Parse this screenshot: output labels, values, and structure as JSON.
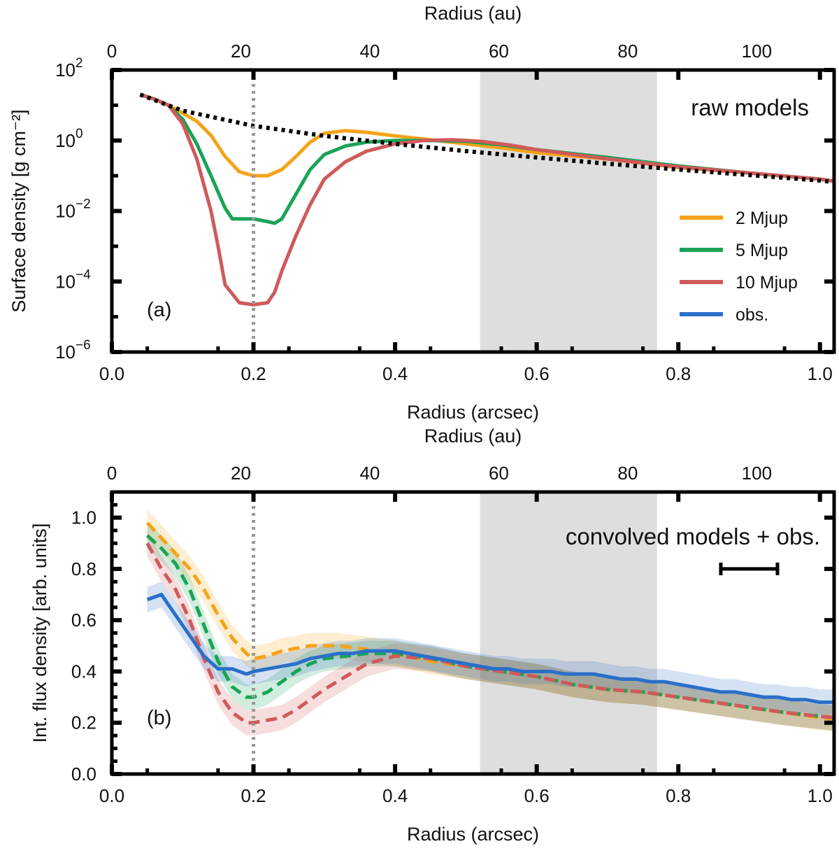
{
  "chart_data": [
    {
      "panel": "a",
      "type": "line",
      "yscale": "log",
      "annotation": "raw models",
      "panel_label": "(a)",
      "xlabel": "Radius (arcsec)",
      "x2label": "Radius (au)",
      "ylabel": "Surface density [g cm⁻²]",
      "xlim": [
        0.0,
        1.02
      ],
      "ylim": [
        1e-06,
        100
      ],
      "au_per_arcsec": 109.8,
      "xticks": [
        "0.0",
        "0.2",
        "0.4",
        "0.6",
        "0.8",
        "1.0"
      ],
      "x2ticks": [
        "0",
        "20",
        "40",
        "60",
        "80",
        "100"
      ],
      "yticks": [
        {
          "base": "10",
          "exp": "2"
        },
        {
          "base": "10",
          "exp": "0"
        },
        {
          "base": "10",
          "exp": "−2"
        },
        {
          "base": "10",
          "exp": "−4"
        },
        {
          "base": "10",
          "exp": "−6"
        }
      ],
      "planet_line_x": 0.2,
      "shaded_region": [
        0.52,
        0.77
      ],
      "legend": [
        "2 Mjup",
        "5 Mjup",
        "10 Mjup",
        "obs."
      ],
      "reference": {
        "name": "unperturbed",
        "style": "dotted",
        "x": [
          0.04,
          0.1,
          0.2,
          0.3,
          0.4,
          0.5,
          0.6,
          0.7,
          0.8,
          0.9,
          1.0,
          1.02
        ],
        "y": [
          20,
          7,
          2.6,
          1.35,
          0.8,
          0.5,
          0.33,
          0.22,
          0.15,
          0.105,
          0.073,
          0.066
        ]
      },
      "series": [
        {
          "name": "2 Mjup",
          "color": "#f5a31a",
          "x": [
            0.04,
            0.06,
            0.08,
            0.1,
            0.12,
            0.14,
            0.16,
            0.18,
            0.2,
            0.22,
            0.24,
            0.26,
            0.28,
            0.3,
            0.33,
            0.36,
            0.4,
            0.45,
            0.5,
            0.55,
            0.6,
            0.7,
            0.8,
            0.9,
            1.0,
            1.02
          ],
          "y": [
            20,
            15,
            10,
            6,
            3.5,
            1.4,
            0.35,
            0.13,
            0.1,
            0.1,
            0.15,
            0.35,
            0.9,
            1.6,
            1.9,
            1.7,
            1.35,
            1.05,
            0.8,
            0.62,
            0.45,
            0.3,
            0.17,
            0.12,
            0.08,
            0.07
          ]
        },
        {
          "name": "5 Mjup",
          "color": "#1aa356",
          "x": [
            0.04,
            0.06,
            0.08,
            0.1,
            0.12,
            0.14,
            0.16,
            0.17,
            0.2,
            0.22,
            0.23,
            0.24,
            0.26,
            0.28,
            0.3,
            0.33,
            0.36,
            0.4,
            0.45,
            0.5,
            0.55,
            0.6,
            0.7,
            0.8,
            0.9,
            1.0,
            1.02
          ],
          "y": [
            20,
            15,
            10,
            4,
            0.8,
            0.1,
            0.012,
            0.006,
            0.006,
            0.005,
            0.0045,
            0.006,
            0.03,
            0.15,
            0.4,
            0.7,
            0.9,
            1.0,
            1.0,
            0.95,
            0.75,
            0.55,
            0.33,
            0.19,
            0.12,
            0.08,
            0.07
          ]
        },
        {
          "name": "10 Mjup",
          "color": "#d05a5a",
          "x": [
            0.04,
            0.06,
            0.08,
            0.1,
            0.12,
            0.14,
            0.15,
            0.16,
            0.18,
            0.2,
            0.22,
            0.23,
            0.24,
            0.26,
            0.28,
            0.3,
            0.33,
            0.36,
            0.4,
            0.44,
            0.48,
            0.52,
            0.56,
            0.6,
            0.7,
            0.8,
            0.9,
            1.0,
            1.02
          ],
          "y": [
            20,
            15,
            10,
            3,
            0.3,
            0.01,
            0.001,
            8e-05,
            2.5e-05,
            2.2e-05,
            2.5e-05,
            5e-05,
            0.0002,
            0.002,
            0.015,
            0.08,
            0.25,
            0.5,
            0.8,
            1.0,
            1.05,
            0.95,
            0.75,
            0.55,
            0.3,
            0.18,
            0.12,
            0.08,
            0.07
          ]
        }
      ]
    },
    {
      "panel": "b",
      "type": "line",
      "yscale": "linear",
      "annotation": "convolved models + obs.",
      "panel_label": "(b)",
      "xlabel": "Radius (arcsec)",
      "x2label": "Radius (au)",
      "ylabel": "Int. flux density [arb. units]",
      "xlim": [
        0.0,
        1.02
      ],
      "ylim": [
        0.0,
        1.1
      ],
      "au_per_arcsec": 109.8,
      "xticks": [
        "0.0",
        "0.2",
        "0.4",
        "0.6",
        "0.8",
        "1.0"
      ],
      "x2ticks": [
        "0",
        "20",
        "40",
        "60",
        "80",
        "100"
      ],
      "yticks": [
        "0.0",
        "0.2",
        "0.4",
        "0.6",
        "0.8",
        "1.0"
      ],
      "planet_line_x": 0.2,
      "shaded_region": [
        0.52,
        0.77
      ],
      "beam_bar": [
        0.86,
        0.94,
        0.8
      ],
      "band_halfwidth": 0.05,
      "series": [
        {
          "name": "2 Mjup",
          "color": "#f5a31a",
          "style": "dashed",
          "x": [
            0.05,
            0.07,
            0.09,
            0.11,
            0.13,
            0.15,
            0.17,
            0.19,
            0.2,
            0.22,
            0.24,
            0.26,
            0.28,
            0.3,
            0.32,
            0.35,
            0.4,
            0.45,
            0.5,
            0.55,
            0.6,
            0.65,
            0.7,
            0.75,
            0.8,
            0.85,
            0.9,
            0.95,
            1.0,
            1.02
          ],
          "y": [
            0.98,
            0.92,
            0.86,
            0.8,
            0.72,
            0.62,
            0.53,
            0.47,
            0.45,
            0.46,
            0.48,
            0.49,
            0.5,
            0.5,
            0.5,
            0.49,
            0.47,
            0.44,
            0.42,
            0.4,
            0.38,
            0.35,
            0.33,
            0.32,
            0.3,
            0.28,
            0.26,
            0.24,
            0.22,
            0.215
          ]
        },
        {
          "name": "5 Mjup",
          "color": "#1aa356",
          "style": "dashed",
          "x": [
            0.05,
            0.07,
            0.09,
            0.11,
            0.13,
            0.15,
            0.17,
            0.19,
            0.2,
            0.22,
            0.24,
            0.26,
            0.28,
            0.3,
            0.33,
            0.36,
            0.4,
            0.45,
            0.5,
            0.55,
            0.6,
            0.65,
            0.7,
            0.75,
            0.8,
            0.85,
            0.9,
            0.95,
            1.0,
            1.02
          ],
          "y": [
            0.93,
            0.88,
            0.82,
            0.72,
            0.58,
            0.44,
            0.34,
            0.3,
            0.3,
            0.32,
            0.36,
            0.4,
            0.43,
            0.45,
            0.46,
            0.47,
            0.47,
            0.45,
            0.42,
            0.4,
            0.38,
            0.35,
            0.33,
            0.32,
            0.3,
            0.28,
            0.26,
            0.24,
            0.225,
            0.22
          ]
        },
        {
          "name": "10 Mjup",
          "color": "#d05a5a",
          "style": "dashed",
          "x": [
            0.05,
            0.07,
            0.09,
            0.11,
            0.13,
            0.15,
            0.17,
            0.19,
            0.2,
            0.22,
            0.24,
            0.26,
            0.28,
            0.3,
            0.33,
            0.36,
            0.4,
            0.45,
            0.5,
            0.55,
            0.6,
            0.65,
            0.7,
            0.75,
            0.8,
            0.85,
            0.9,
            0.95,
            1.0,
            1.02
          ],
          "y": [
            0.9,
            0.8,
            0.72,
            0.6,
            0.45,
            0.32,
            0.24,
            0.2,
            0.2,
            0.21,
            0.22,
            0.25,
            0.29,
            0.33,
            0.38,
            0.43,
            0.46,
            0.45,
            0.42,
            0.4,
            0.38,
            0.35,
            0.33,
            0.32,
            0.3,
            0.28,
            0.26,
            0.24,
            0.225,
            0.22
          ]
        },
        {
          "name": "obs.",
          "color": "#2a6fc9",
          "style": "solid",
          "x": [
            0.05,
            0.07,
            0.09,
            0.11,
            0.13,
            0.15,
            0.17,
            0.19,
            0.2,
            0.22,
            0.24,
            0.26,
            0.28,
            0.3,
            0.32,
            0.34,
            0.36,
            0.38,
            0.4,
            0.42,
            0.44,
            0.46,
            0.48,
            0.5,
            0.52,
            0.54,
            0.56,
            0.58,
            0.6,
            0.62,
            0.64,
            0.66,
            0.68,
            0.7,
            0.72,
            0.74,
            0.76,
            0.78,
            0.8,
            0.82,
            0.84,
            0.86,
            0.88,
            0.9,
            0.92,
            0.94,
            0.96,
            0.98,
            1.0,
            1.02
          ],
          "y": [
            0.68,
            0.7,
            0.62,
            0.54,
            0.46,
            0.41,
            0.41,
            0.39,
            0.4,
            0.41,
            0.42,
            0.43,
            0.45,
            0.46,
            0.47,
            0.47,
            0.48,
            0.48,
            0.48,
            0.47,
            0.46,
            0.45,
            0.44,
            0.43,
            0.42,
            0.41,
            0.41,
            0.4,
            0.4,
            0.4,
            0.39,
            0.39,
            0.39,
            0.38,
            0.37,
            0.37,
            0.36,
            0.36,
            0.35,
            0.34,
            0.33,
            0.32,
            0.32,
            0.31,
            0.3,
            0.3,
            0.29,
            0.29,
            0.28,
            0.28
          ]
        }
      ]
    }
  ]
}
